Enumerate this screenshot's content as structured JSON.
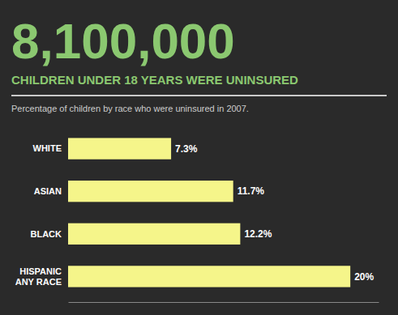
{
  "chart_data": {
    "type": "bar",
    "orientation": "horizontal",
    "title": "8,100,000",
    "subtitle": "CHILDREN UNDER 18 YEARS WERE UNINSURED",
    "annotations": [
      "Percentage of children by race who were uninsured in 2007."
    ],
    "categories": [
      "WHITE",
      "ASIAN",
      "BLACK",
      "HISPANIC\nANY RACE"
    ],
    "values": [
      7.3,
      11.7,
      12.2,
      20.0
    ],
    "value_labels": [
      "7.3%",
      "11.7%",
      "12.2%",
      "20%"
    ],
    "color": "#f5f58a",
    "xlim": [
      0,
      22
    ],
    "data_labels": true,
    "tick_labels": "y",
    "grid": false
  }
}
